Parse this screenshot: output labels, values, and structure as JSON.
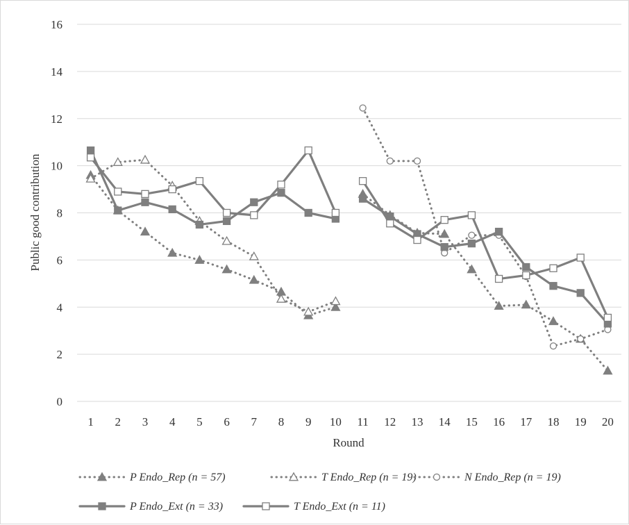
{
  "chart_data": {
    "type": "line",
    "title": "",
    "xlabel": "Round",
    "ylabel": "Public good contribution",
    "ylim": [
      0,
      16
    ],
    "yticks": [
      0,
      2,
      4,
      6,
      8,
      10,
      12,
      14,
      16
    ],
    "x": [
      1,
      2,
      3,
      4,
      5,
      6,
      7,
      8,
      9,
      10,
      11,
      12,
      13,
      14,
      15,
      16,
      17,
      18,
      19,
      20
    ],
    "grid": "horizontal",
    "legend_position": "bottom",
    "colors": {
      "series": "#7f7f7f",
      "grid": "#d9d9d9",
      "text": "#333333"
    },
    "series": [
      {
        "name": "P Endo_Rep (n = 57)",
        "style": "dotted",
        "marker": "triangle-filled",
        "values": [
          9.6,
          8.1,
          7.2,
          6.3,
          6.0,
          5.6,
          5.15,
          4.65,
          3.65,
          4.0,
          8.8,
          7.9,
          7.15,
          7.1,
          5.6,
          4.05,
          4.1,
          3.4,
          2.65,
          1.3
        ]
      },
      {
        "name": "T Endo_Rep (n = 19)",
        "style": "dotted",
        "marker": "triangle-open",
        "values": [
          9.45,
          10.15,
          10.25,
          9.15,
          7.65,
          6.8,
          6.15,
          4.35,
          3.8,
          4.25,
          null,
          null,
          null,
          null,
          null,
          null,
          null,
          null,
          null,
          null
        ]
      },
      {
        "name": "N Endo_Rep (n = 19)",
        "style": "dotted",
        "marker": "circle-open",
        "values": [
          null,
          null,
          null,
          null,
          null,
          null,
          null,
          null,
          null,
          null,
          12.45,
          10.2,
          10.2,
          6.3,
          7.05,
          7.05,
          5.3,
          2.35,
          2.65,
          3.05
        ]
      },
      {
        "name": "P Endo_Ext (n = 33)",
        "style": "solid",
        "marker": "square-filled",
        "values": [
          10.65,
          8.1,
          8.45,
          8.15,
          7.5,
          7.65,
          8.45,
          8.85,
          8.0,
          7.75,
          8.6,
          7.85,
          7.1,
          6.55,
          6.7,
          7.2,
          5.7,
          4.9,
          4.6,
          3.3
        ]
      },
      {
        "name": "T Endo_Ext (n = 11)",
        "style": "solid",
        "marker": "square-open",
        "values": [
          10.35,
          8.9,
          8.8,
          9.0,
          9.35,
          8.0,
          7.9,
          9.2,
          10.65,
          8.0,
          9.35,
          7.55,
          6.85,
          7.7,
          7.9,
          5.2,
          5.35,
          5.65,
          6.1,
          3.55
        ]
      }
    ]
  }
}
